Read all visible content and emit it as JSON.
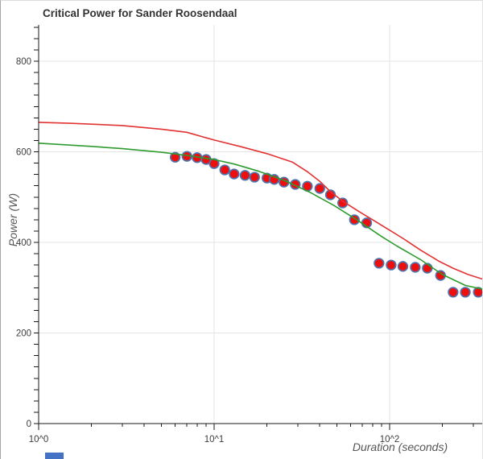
{
  "window": {
    "background": "#ffffff",
    "border_left_color": "#a6a6a6",
    "border_top_color": "#dcdcdc"
  },
  "styles": {
    "title_color": "#333333",
    "axis_title_color": "#565656",
    "tick_label_color": "#3d3d3d",
    "axis_line_color": "#1a1a1a",
    "grid_color": "#e4e4e4"
  },
  "bottom_partial_element": {
    "color": "#4472c4"
  },
  "chart_data": {
    "type": "scatter",
    "title": "Critical Power for Sander Roosendaal",
    "xlabel": "Duration (seconds)",
    "ylabel": "Power (W)",
    "x_scale": "log10",
    "xlim": [
      1,
      345
    ],
    "ylim": [
      0,
      900
    ],
    "grid": true,
    "legend": "none",
    "x_major_ticks": [
      {
        "value": 1,
        "label": "10^0"
      },
      {
        "value": 10,
        "label": "10^1"
      },
      {
        "value": 100,
        "label": "10^2"
      }
    ],
    "x_minor_ticks": [
      2,
      3,
      4,
      5,
      6,
      7,
      8,
      9,
      20,
      30,
      40,
      50,
      60,
      70,
      80,
      90,
      200,
      300
    ],
    "y_labeled_ticks": [
      0,
      200,
      400,
      600,
      800
    ],
    "y_minor_step": 25,
    "y_minor_max": 875,
    "h_gridlines": [
      200,
      400,
      600,
      800
    ],
    "v_gridlines": [
      10,
      100
    ],
    "series": [
      {
        "name": "observed-power-points",
        "type": "scatter",
        "marker_fill": "#ed0e0e",
        "marker_stroke": "#4f73ab",
        "points": [
          [
            6,
            588
          ],
          [
            7,
            590
          ],
          [
            8,
            587
          ],
          [
            9,
            583
          ],
          [
            10,
            574
          ],
          [
            11.5,
            560
          ],
          [
            13,
            551
          ],
          [
            15,
            548
          ],
          [
            17,
            544
          ],
          [
            20,
            542
          ],
          [
            22,
            539
          ],
          [
            25,
            533
          ],
          [
            29,
            528
          ],
          [
            34,
            524
          ],
          [
            40,
            519
          ],
          [
            46,
            505
          ],
          [
            54,
            487
          ],
          [
            63,
            450
          ],
          [
            74,
            443
          ],
          [
            87,
            354
          ],
          [
            102,
            350
          ],
          [
            119,
            347
          ],
          [
            140,
            345
          ],
          [
            164,
            343
          ],
          [
            195,
            327
          ],
          [
            230,
            290
          ],
          [
            270,
            290
          ],
          [
            320,
            290
          ]
        ]
      },
      {
        "name": "green-model-curve",
        "type": "line",
        "color": "#2e9b2e",
        "points": [
          [
            1,
            619
          ],
          [
            2,
            612
          ],
          [
            3,
            607
          ],
          [
            5,
            599
          ],
          [
            7,
            592
          ],
          [
            10,
            583
          ],
          [
            13,
            573
          ],
          [
            18,
            557
          ],
          [
            25,
            537
          ],
          [
            35,
            511
          ],
          [
            48,
            482
          ],
          [
            65,
            450
          ],
          [
            90,
            413
          ],
          [
            110,
            392
          ],
          [
            150,
            362
          ],
          [
            200,
            329
          ],
          [
            270,
            305
          ],
          [
            345,
            296
          ]
        ]
      },
      {
        "name": "red-model-curve",
        "type": "line",
        "color": "#e23232",
        "points": [
          [
            1,
            665
          ],
          [
            1.5,
            663
          ],
          [
            2,
            661
          ],
          [
            3,
            658
          ],
          [
            5,
            650
          ],
          [
            7,
            643
          ],
          [
            10,
            626
          ],
          [
            14,
            612
          ],
          [
            20,
            596
          ],
          [
            28,
            577
          ],
          [
            34,
            556
          ],
          [
            40,
            535
          ],
          [
            46,
            512
          ],
          [
            54,
            491
          ],
          [
            67,
            468
          ],
          [
            80,
            450
          ],
          [
            97,
            430
          ],
          [
            120,
            408
          ],
          [
            150,
            383
          ],
          [
            190,
            359
          ],
          [
            230,
            343
          ],
          [
            280,
            329
          ],
          [
            345,
            318
          ]
        ]
      }
    ]
  }
}
